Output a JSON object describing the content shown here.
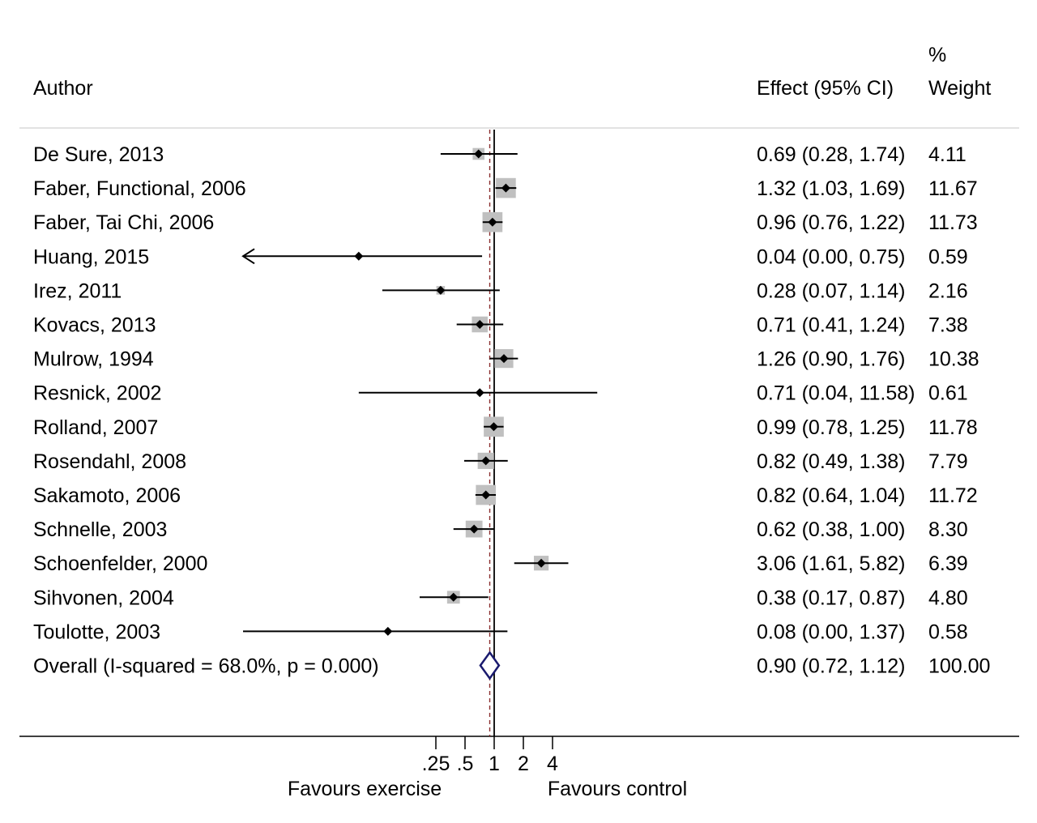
{
  "chart_data": {
    "type": "forest",
    "header": {
      "author": "Author",
      "effect": "Effect (95% CI)",
      "weight_line1": "%",
      "weight_line2": "Weight"
    },
    "x_scale": "log",
    "null_value": 1,
    "xticks": [
      {
        "value": 0.25,
        "label": ".25"
      },
      {
        "value": 0.5,
        "label": ".5"
      },
      {
        "value": 1,
        "label": "1"
      },
      {
        "value": 2,
        "label": "2"
      },
      {
        "value": 4,
        "label": "4"
      }
    ],
    "xlabel_left": "Favours exercise",
    "xlabel_right": "Favours control",
    "studies": [
      {
        "author": "De Sure, 2013",
        "effect": 0.69,
        "lower": 0.28,
        "upper": 1.74,
        "ci_text": "0.69 (0.28, 1.74)",
        "weight": 4.11,
        "weight_text": "4.11"
      },
      {
        "author": "Faber, Functional, 2006",
        "effect": 1.32,
        "lower": 1.03,
        "upper": 1.69,
        "ci_text": "1.32 (1.03, 1.69)",
        "weight": 11.67,
        "weight_text": "11.67"
      },
      {
        "author": "Faber, Tai Chi, 2006",
        "effect": 0.96,
        "lower": 0.76,
        "upper": 1.22,
        "ci_text": "0.96 (0.76, 1.22)",
        "weight": 11.73,
        "weight_text": "11.73"
      },
      {
        "author": "Huang, 2015",
        "effect": 0.04,
        "lower": 0.0,
        "upper": 0.75,
        "ci_text": "0.04 (0.00, 0.75)",
        "weight": 0.59,
        "weight_text": "0.59",
        "arrow_left": true
      },
      {
        "author": "Irez, 2011",
        "effect": 0.28,
        "lower": 0.07,
        "upper": 1.14,
        "ci_text": "0.28 (0.07, 1.14)",
        "weight": 2.16,
        "weight_text": "2.16"
      },
      {
        "author": "Kovacs, 2013",
        "effect": 0.71,
        "lower": 0.41,
        "upper": 1.24,
        "ci_text": "0.71 (0.41, 1.24)",
        "weight": 7.38,
        "weight_text": "7.38"
      },
      {
        "author": "Mulrow, 1994",
        "effect": 1.26,
        "lower": 0.9,
        "upper": 1.76,
        "ci_text": "1.26 (0.90, 1.76)",
        "weight": 10.38,
        "weight_text": "10.38"
      },
      {
        "author": "Resnick, 2002",
        "effect": 0.71,
        "lower": 0.04,
        "upper": 11.58,
        "ci_text": "0.71 (0.04, 11.58)",
        "weight": 0.61,
        "weight_text": "0.61"
      },
      {
        "author": "Rolland, 2007",
        "effect": 0.99,
        "lower": 0.78,
        "upper": 1.25,
        "ci_text": "0.99 (0.78, 1.25)",
        "weight": 11.78,
        "weight_text": "11.78"
      },
      {
        "author": "Rosendahl, 2008",
        "effect": 0.82,
        "lower": 0.49,
        "upper": 1.38,
        "ci_text": "0.82 (0.49, 1.38)",
        "weight": 7.79,
        "weight_text": "7.79"
      },
      {
        "author": "Sakamoto, 2006",
        "effect": 0.82,
        "lower": 0.64,
        "upper": 1.04,
        "ci_text": "0.82 (0.64, 1.04)",
        "weight": 11.72,
        "weight_text": "11.72"
      },
      {
        "author": "Schnelle, 2003",
        "effect": 0.62,
        "lower": 0.38,
        "upper": 1.0,
        "ci_text": "0.62 (0.38, 1.00)",
        "weight": 8.3,
        "weight_text": "8.30"
      },
      {
        "author": "Schoenfelder, 2000",
        "effect": 3.06,
        "lower": 1.61,
        "upper": 5.82,
        "ci_text": "3.06 (1.61, 5.82)",
        "weight": 6.39,
        "weight_text": "6.39"
      },
      {
        "author": "Sihvonen, 2004",
        "effect": 0.38,
        "lower": 0.17,
        "upper": 0.87,
        "ci_text": "0.38 (0.17, 0.87)",
        "weight": 4.8,
        "weight_text": "4.80"
      },
      {
        "author": "Toulotte, 2003",
        "effect": 0.08,
        "lower": 0.0,
        "upper": 1.37,
        "ci_text": "0.08 (0.00, 1.37)",
        "weight": 0.58,
        "weight_text": "0.58"
      }
    ],
    "overall": {
      "label": "Overall  (I-squared = 68.0%, p = 0.000)",
      "effect": 0.9,
      "lower": 0.72,
      "upper": 1.12,
      "ci_text": "0.90 (0.72, 1.12)",
      "weight_text": "100.00"
    },
    "colors": {
      "weight_box": "#c0c0c0",
      "overall_diamond": "#1a1a6e",
      "overall_line": "#8b2e2e",
      "line": "#000000"
    }
  }
}
